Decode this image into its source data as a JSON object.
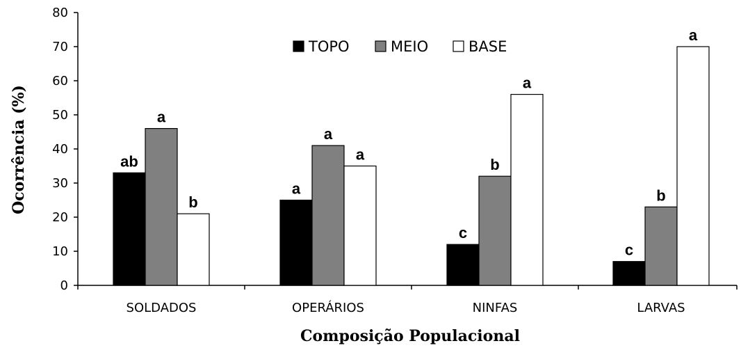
{
  "chart_data": {
    "type": "bar",
    "title": "",
    "xlabel": "Composição Populacional",
    "ylabel": "Ocorrência (%)",
    "ylim": [
      0,
      80
    ],
    "yticks": [
      0,
      10,
      20,
      30,
      40,
      50,
      60,
      70,
      80
    ],
    "grid": false,
    "legend_position": "top-center",
    "categories": [
      "SOLDADOS",
      "OPERÁRIOS",
      "NINFAS",
      "LARVAS"
    ],
    "series": [
      {
        "name": "TOPO",
        "color": "#000000",
        "values": [
          33,
          25,
          12,
          7
        ],
        "letters": [
          "ab",
          "a",
          "c",
          "c"
        ]
      },
      {
        "name": "MEIO",
        "color": "#808080",
        "values": [
          46,
          41,
          32,
          23
        ],
        "letters": [
          "a",
          "a",
          "b",
          "b"
        ]
      },
      {
        "name": "BASE",
        "color": "#ffffff",
        "values": [
          21,
          35,
          56,
          70
        ],
        "letters": [
          "b",
          "a",
          "a",
          "a"
        ]
      }
    ]
  }
}
